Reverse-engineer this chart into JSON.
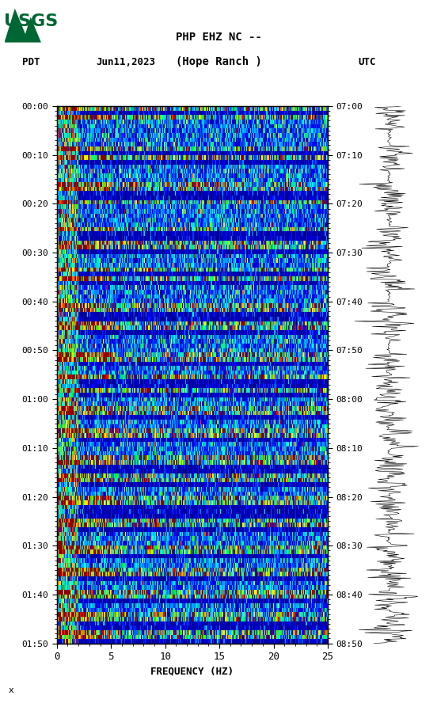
{
  "title_line1": "PHP EHZ NC --",
  "title_line2": "(Hope Ranch )",
  "left_label": "PDT",
  "date_label": "Jun11,2023",
  "right_label": "UTC",
  "left_times": [
    "00:00",
    "00:10",
    "00:20",
    "00:30",
    "00:40",
    "00:50",
    "01:00",
    "01:10",
    "01:20",
    "01:30",
    "01:40",
    "01:50"
  ],
  "right_times": [
    "07:00",
    "07:10",
    "07:20",
    "07:30",
    "07:40",
    "07:50",
    "08:00",
    "08:10",
    "08:20",
    "08:30",
    "08:40",
    "08:50"
  ],
  "freq_min": 0,
  "freq_max": 25,
  "freq_ticks": [
    0,
    5,
    10,
    15,
    20,
    25
  ],
  "freq_label": "FREQUENCY (HZ)",
  "n_time_rows": 120,
  "n_freq_cols": 300,
  "bg_color": "#ffffff",
  "usgs_green": "#006633",
  "spectrogram_seed": 42,
  "vlines_x": [
    1.0,
    2.0,
    3.0,
    4.0,
    5.0,
    6.0,
    7.0,
    8.0,
    9.0,
    10.0,
    11.0,
    12.0,
    13.0,
    14.0,
    15.0,
    16.0,
    17.0,
    18.0,
    19.0,
    20.0,
    21.0,
    22.0,
    23.0,
    24.0
  ],
  "vline_color": "#4444aa",
  "vline_alpha": 0.5
}
